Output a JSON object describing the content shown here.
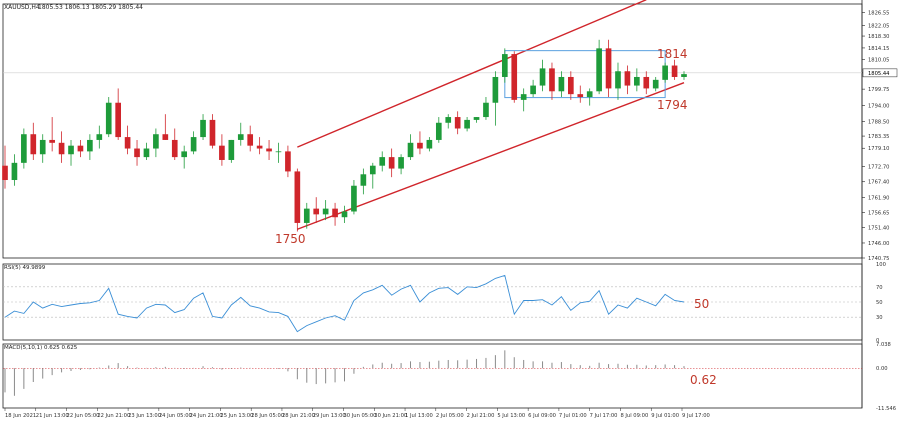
{
  "header": {
    "symbol_label": "XAUUSD,H4",
    "ohlc_label": "1805.53 1806.13 1805.29 1805.44"
  },
  "colors": {
    "bull": "#1e9b3a",
    "bear": "#d0252b",
    "channel": "#d0252b",
    "range_box": "#5aa0e0",
    "rsi_line": "#3b8fd6",
    "annotation": "#c0392b",
    "grid": "#e2e2e2",
    "axis_text": "#333333"
  },
  "chart_data": [
    {
      "type": "candlestick",
      "title": "XAUUSD,H4",
      "ylim": [
        1740.75,
        1829.5
      ],
      "y_ticks": [
        "1826.55",
        "1822.05",
        "1818.30",
        "1814.15",
        "1810.05",
        "1805.44",
        "1799.75",
        "1794.00",
        "1788.50",
        "1783.35",
        "1779.10",
        "1772.70",
        "1767.40",
        "1761.90",
        "1756.65",
        "1751.40",
        "1746.00",
        "1740.75"
      ],
      "current_price": "1805.44",
      "x_tick_labels": [
        "18 Jun 2021",
        "21 Jun 13:00",
        "22 Jun 05:00",
        "22 Jun 21:00",
        "23 Jun 13:00",
        "24 Jun 05:00",
        "24 Jun 21:00",
        "25 Jun 13:00",
        "28 Jun 05:00",
        "28 Jun 21:00",
        "29 Jun 13:00",
        "30 Jun 05:00",
        "30 Jun 21:00",
        "1 Jul 13:00",
        "2 Jul 05:00",
        "2 Jul 21:00",
        "5 Jul 13:00",
        "6 Jul 09:00",
        "7 Jul 01:00",
        "7 Jul 17:00",
        "8 Jul 09:00",
        "9 Jul 01:00",
        "9 Jul 17:00"
      ],
      "candles": [
        [
          1773,
          1780,
          1765,
          1768
        ],
        [
          1768,
          1777,
          1766,
          1774
        ],
        [
          1774,
          1786,
          1772,
          1784
        ],
        [
          1784,
          1788,
          1775,
          1777
        ],
        [
          1777,
          1784,
          1774,
          1782
        ],
        [
          1782,
          1790,
          1778,
          1781
        ],
        [
          1781,
          1785,
          1774,
          1777
        ],
        [
          1777,
          1782,
          1773,
          1780
        ],
        [
          1780,
          1782,
          1776,
          1778
        ],
        [
          1778,
          1784,
          1775,
          1782
        ],
        [
          1782,
          1787,
          1779,
          1784
        ],
        [
          1784,
          1797,
          1783,
          1795
        ],
        [
          1795,
          1800,
          1782,
          1783
        ],
        [
          1783,
          1787,
          1777,
          1779
        ],
        [
          1779,
          1782,
          1773,
          1776
        ],
        [
          1776,
          1781,
          1775,
          1779
        ],
        [
          1779,
          1786,
          1776,
          1784
        ],
        [
          1784,
          1791,
          1782,
          1782
        ],
        [
          1782,
          1786,
          1775,
          1776
        ],
        [
          1776,
          1780,
          1772,
          1778
        ],
        [
          1778,
          1785,
          1777,
          1783
        ],
        [
          1783,
          1791,
          1782,
          1789
        ],
        [
          1789,
          1791,
          1779,
          1780
        ],
        [
          1780,
          1784,
          1773,
          1775
        ],
        [
          1775,
          1782,
          1774,
          1782
        ],
        [
          1782,
          1788,
          1780,
          1784
        ],
        [
          1784,
          1787,
          1778,
          1780
        ],
        [
          1780,
          1783,
          1777,
          1779
        ],
        [
          1779,
          1782,
          1775,
          1778
        ],
        [
          1778,
          1781,
          1774,
          1778
        ],
        [
          1778,
          1780,
          1769,
          1771
        ],
        [
          1771,
          1772,
          1750,
          1753
        ],
        [
          1753,
          1760,
          1751,
          1758
        ],
        [
          1758,
          1762,
          1753,
          1756
        ],
        [
          1756,
          1761,
          1754,
          1758
        ],
        [
          1758,
          1760,
          1752,
          1755
        ],
        [
          1755,
          1759,
          1753,
          1757
        ],
        [
          1757,
          1768,
          1756,
          1766
        ],
        [
          1766,
          1772,
          1763,
          1770
        ],
        [
          1770,
          1774,
          1765,
          1773
        ],
        [
          1773,
          1778,
          1771,
          1776
        ],
        [
          1776,
          1779,
          1769,
          1772
        ],
        [
          1772,
          1777,
          1770,
          1776
        ],
        [
          1776,
          1784,
          1775,
          1781
        ],
        [
          1781,
          1785,
          1777,
          1779
        ],
        [
          1779,
          1783,
          1778,
          1782
        ],
        [
          1782,
          1790,
          1781,
          1788
        ],
        [
          1788,
          1791,
          1786,
          1790
        ],
        [
          1790,
          1792,
          1784,
          1786
        ],
        [
          1786,
          1790,
          1785,
          1789
        ],
        [
          1789,
          1790,
          1788,
          1790
        ],
        [
          1790,
          1797,
          1789,
          1795
        ],
        [
          1795,
          1806,
          1787,
          1804
        ],
        [
          1804,
          1814,
          1802,
          1812
        ],
        [
          1812,
          1813,
          1795,
          1796
        ],
        [
          1796,
          1800,
          1792,
          1798
        ],
        [
          1798,
          1803,
          1797,
          1801
        ],
        [
          1801,
          1810,
          1799,
          1807
        ],
        [
          1807,
          1809,
          1796,
          1799
        ],
        [
          1799,
          1806,
          1797,
          1804
        ],
        [
          1804,
          1806,
          1796,
          1798
        ],
        [
          1798,
          1801,
          1795,
          1797
        ],
        [
          1797,
          1800,
          1794,
          1799
        ],
        [
          1799,
          1817,
          1798,
          1814
        ],
        [
          1814,
          1817,
          1797,
          1800
        ],
        [
          1800,
          1809,
          1796,
          1806
        ],
        [
          1806,
          1808,
          1798,
          1801
        ],
        [
          1801,
          1807,
          1799,
          1804
        ],
        [
          1804,
          1806,
          1798,
          1800
        ],
        [
          1800,
          1804,
          1799,
          1803
        ],
        [
          1803,
          1809,
          1802,
          1808
        ],
        [
          1808,
          1810,
          1803,
          1804
        ],
        [
          1804,
          1806,
          1803,
          1805
        ]
      ],
      "annotations": [
        {
          "label": "1750",
          "ref": 1750.8
        },
        {
          "label": "1814",
          "ref": 1813.2
        },
        {
          "label": "1794",
          "ref": 1796.8
        }
      ],
      "channel": {
        "lower": {
          "from_index": 31,
          "to_index": 72,
          "from_value": 1750.8,
          "to_value": 1802.0
        },
        "upper": {
          "from_index": 31,
          "to_index": 68,
          "from_value": 1779.5,
          "to_value": 1831.0
        }
      },
      "range_box": {
        "from_index": 53,
        "to_index": 70,
        "top": 1813.2,
        "bottom": 1796.8
      }
    },
    {
      "type": "line",
      "title": "RSI(5) 49.9899",
      "ylim": [
        0,
        100
      ],
      "levels": [
        70,
        50,
        30
      ],
      "y_ticks": [
        "100",
        "70",
        "50",
        "30",
        "0"
      ],
      "annotation": "50",
      "values": [
        30,
        38,
        35,
        50,
        42,
        47,
        44,
        46,
        48,
        49,
        52,
        68,
        34,
        31,
        29,
        42,
        47,
        46,
        36,
        40,
        55,
        62,
        31,
        29,
        46,
        56,
        45,
        42,
        37,
        36,
        31,
        11,
        19,
        24,
        29,
        32,
        26,
        52,
        62,
        66,
        72,
        59,
        67,
        72,
        50,
        62,
        68,
        69,
        60,
        70,
        69,
        74,
        81,
        85,
        34,
        52,
        52,
        53,
        46,
        57,
        39,
        49,
        51,
        65,
        34,
        46,
        42,
        55,
        50,
        45,
        60,
        52,
        50
      ]
    },
    {
      "type": "bar",
      "title": "MACD(5,10,1) 0.625 0.625",
      "y_ticks": [
        "7.038",
        "0.00",
        "-11.546"
      ],
      "ylim": [
        -11.546,
        7.038
      ],
      "annotation": "0.62",
      "values": [
        -7,
        -8,
        -6,
        -4,
        -3,
        -2,
        -1.2,
        -0.8,
        -0.5,
        -0.3,
        0.2,
        0.8,
        1.5,
        0.6,
        0.2,
        0.1,
        0.3,
        0.4,
        0.1,
        -0.2,
        0.1,
        0.6,
        0.3,
        -0.4,
        -0.2,
        0.2,
        0.1,
        0,
        -0.1,
        -0.2,
        -0.9,
        -3.2,
        -4.2,
        -4.6,
        -4.4,
        -4.1,
        -3.8,
        -1.6,
        0.4,
        1.1,
        1.6,
        1.3,
        1.5,
        2.0,
        1.8,
        1.9,
        2.2,
        2.4,
        2.3,
        2.5,
        2.7,
        3.0,
        3.8,
        5.2,
        3.2,
        2.4,
        2.0,
        2.0,
        1.6,
        1.8,
        1.2,
        0.9,
        0.7,
        1.6,
        1.2,
        1.3,
        1.0,
        1.0,
        0.8,
        0.9,
        1.1,
        0.9,
        0.6
      ]
    }
  ]
}
